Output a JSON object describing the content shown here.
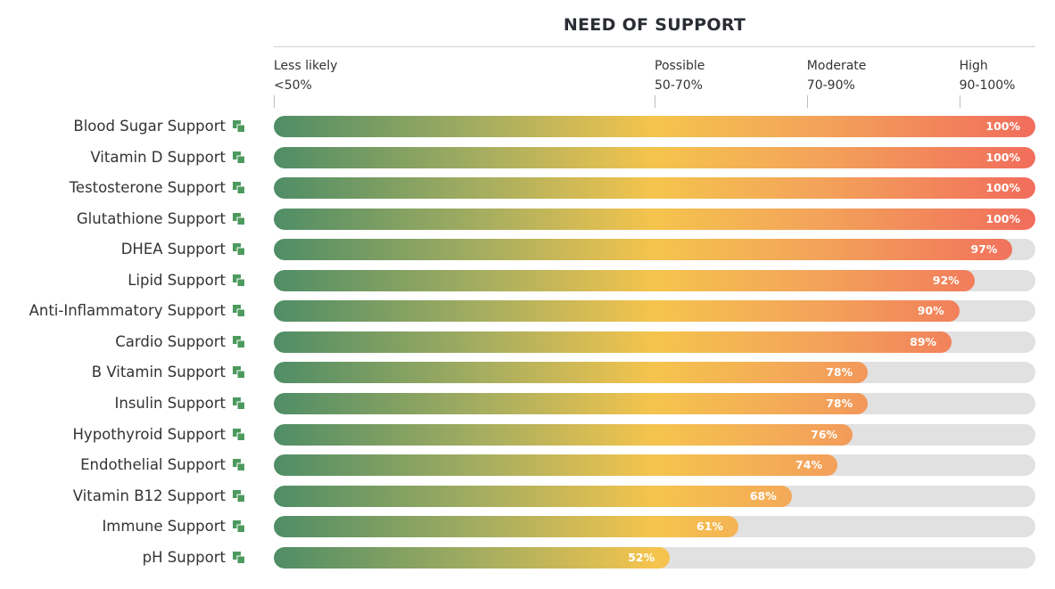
{
  "chart_data": {
    "type": "bar",
    "title": "NEED OF SUPPORT",
    "orientation": "horizontal",
    "scale": [
      {
        "name": "Less likely",
        "range": "<50%"
      },
      {
        "name": "Possible",
        "range": "50-70%"
      },
      {
        "name": "Moderate",
        "range": "70-90%"
      },
      {
        "name": "High",
        "range": "90-100%"
      }
    ],
    "categories": [
      "Blood Sugar Support",
      "Vitamin D Support",
      "Testosterone Support",
      "Glutathione Support",
      "DHEA Support",
      "Lipid Support",
      "Anti-Inflammatory Support",
      "Cardio Support",
      "B Vitamin Support",
      "Insulin Support",
      "Hypothyroid Support",
      "Endothelial Support",
      "Vitamin B12 Support",
      "Immune Support",
      "pH Support"
    ],
    "values": [
      100,
      100,
      100,
      100,
      97,
      92,
      90,
      89,
      78,
      78,
      76,
      74,
      68,
      61,
      52
    ],
    "value_labels": [
      "100%",
      "100%",
      "100%",
      "100%",
      "97%",
      "92%",
      "90%",
      "89%",
      "78%",
      "78%",
      "76%",
      "74%",
      "68%",
      "61%",
      "52%"
    ],
    "xlim": [
      0,
      100
    ],
    "colors": {
      "gradient": [
        "#4f8d66",
        "#a4ad60",
        "#f5c44d",
        "#f3a45a",
        "#f16d5c"
      ],
      "track": "#e1e1e1",
      "icon": "#4c9a5e"
    }
  },
  "icons": {
    "row_icon": "copy-squares-icon"
  }
}
